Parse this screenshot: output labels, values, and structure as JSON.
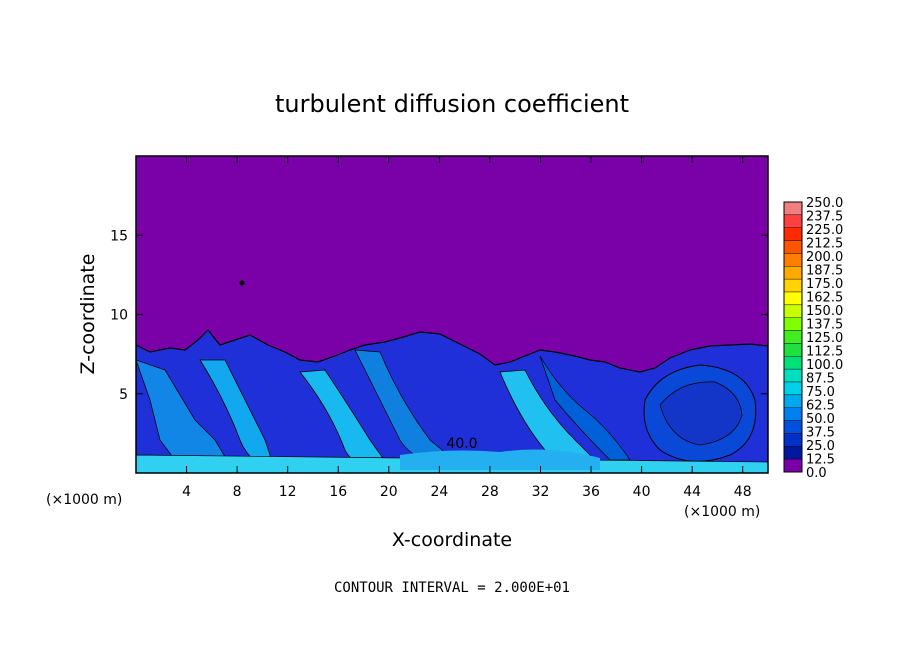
{
  "chart_data": {
    "type": "heatmap",
    "title": "turbulent diffusion coefficient",
    "xlabel": "X-coordinate",
    "ylabel": "Z-coordinate",
    "x_unit_left": "(×1000 m)",
    "x_unit_right": "(×1000 m)",
    "xlim": [
      0,
      50
    ],
    "ylim": [
      0,
      20
    ],
    "x_ticks": [
      4,
      8,
      12,
      16,
      20,
      24,
      28,
      32,
      36,
      40,
      44,
      48
    ],
    "y_ticks": [
      5,
      10,
      15
    ],
    "contour_label": "40.0",
    "footnote": "CONTOUR INTERVAL = 2.000E+01",
    "colorbar": {
      "labels": [
        "250.0",
        "237.5",
        "225.0",
        "212.5",
        "200.0",
        "187.5",
        "175.0",
        "162.5",
        "150.0",
        "137.5",
        "125.0",
        "112.5",
        "100.0",
        "87.5",
        "75.0",
        "62.5",
        "50.0",
        "37.5",
        "25.0",
        "12.5",
        "0.0"
      ],
      "colors": [
        "#f08080",
        "#ff4040",
        "#ff2a00",
        "#ff5500",
        "#ff8000",
        "#ffaa00",
        "#ffd400",
        "#ffff00",
        "#c8ff00",
        "#7fff00",
        "#40ee20",
        "#20e040",
        "#00e07a",
        "#00e0c0",
        "#00d0e8",
        "#00a8f0",
        "#0080f0",
        "#0050e0",
        "#0030c8",
        "#0018a0",
        "#7a00a8"
      ]
    },
    "colors": {
      "background_field": "#7a00a8",
      "boundary_layer_top": "#2030d8"
    }
  }
}
